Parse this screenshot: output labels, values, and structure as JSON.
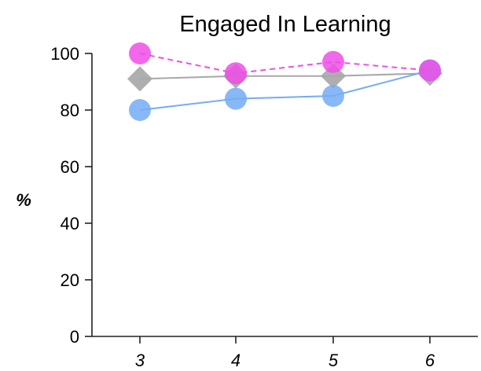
{
  "chart_data": {
    "type": "line",
    "title": "Engaged In Learning",
    "xlabel": "",
    "ylabel": "%",
    "x": [
      3,
      4,
      5,
      6
    ],
    "x_tick_labels": [
      "3",
      "4",
      "5",
      "6"
    ],
    "ylim": [
      0,
      100
    ],
    "y_ticks": [
      0,
      20,
      40,
      60,
      80,
      100
    ],
    "y_tick_labels": [
      "0",
      "20",
      "40",
      "60",
      "80",
      "100"
    ],
    "grid": false,
    "legend": "none",
    "series": [
      {
        "values": [
          91,
          92,
          92,
          93
        ],
        "color": "#a8a8a8",
        "marker": "diamond",
        "dashed": false
      },
      {
        "values": [
          80,
          84,
          85,
          94
        ],
        "color": "#74abf5",
        "marker": "circle",
        "dashed": false
      },
      {
        "values": [
          100,
          93,
          97,
          94
        ],
        "color": "#ee4ee8",
        "marker": "circle",
        "dashed": true
      }
    ]
  }
}
